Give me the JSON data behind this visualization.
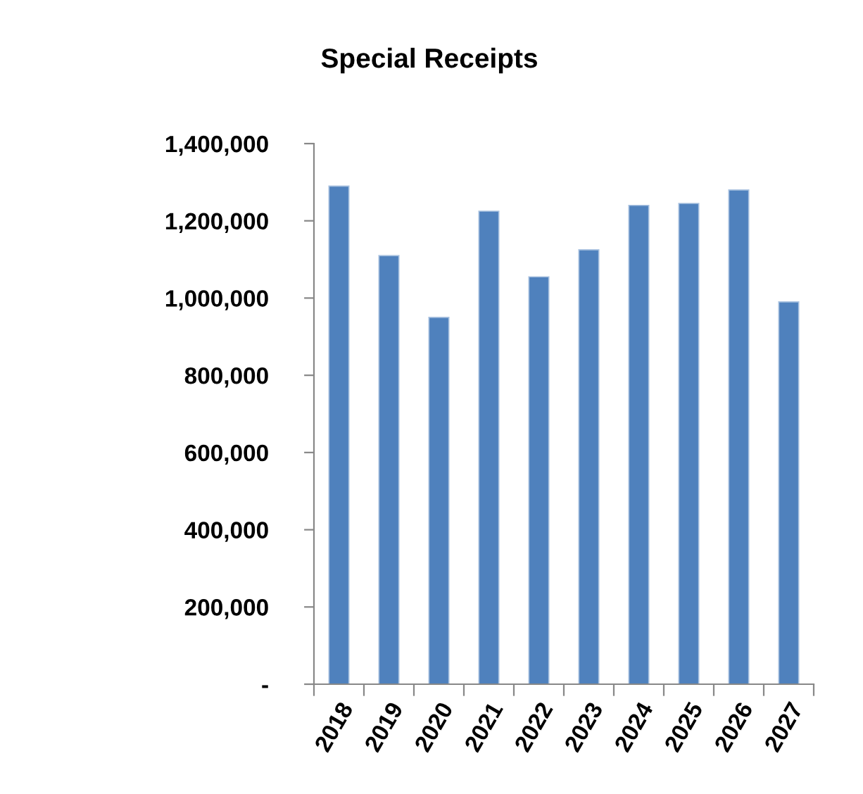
{
  "chart_data": {
    "type": "bar",
    "title": "Special Receipts",
    "categories": [
      "2018",
      "2019",
      "2020",
      "2021",
      "2022",
      "2023",
      "2024",
      "2025",
      "2026",
      "2027"
    ],
    "values": [
      1290000,
      1110000,
      950000,
      1225000,
      1055000,
      1125000,
      1240000,
      1245000,
      1280000,
      990000
    ],
    "color": "#4f81bd",
    "ylim": [
      0,
      1400000
    ],
    "yticks": [
      {
        "value": 0,
        "label": "-"
      },
      {
        "value": 200000,
        "label": "200,000"
      },
      {
        "value": 400000,
        "label": "400,000"
      },
      {
        "value": 600000,
        "label": "600,000"
      },
      {
        "value": 800000,
        "label": "800,000"
      },
      {
        "value": 1000000,
        "label": "1,000,000"
      },
      {
        "value": 1200000,
        "label": "1,200,000"
      },
      {
        "value": 1400000,
        "label": "1,400,000"
      }
    ],
    "grid": false,
    "legend": false
  }
}
